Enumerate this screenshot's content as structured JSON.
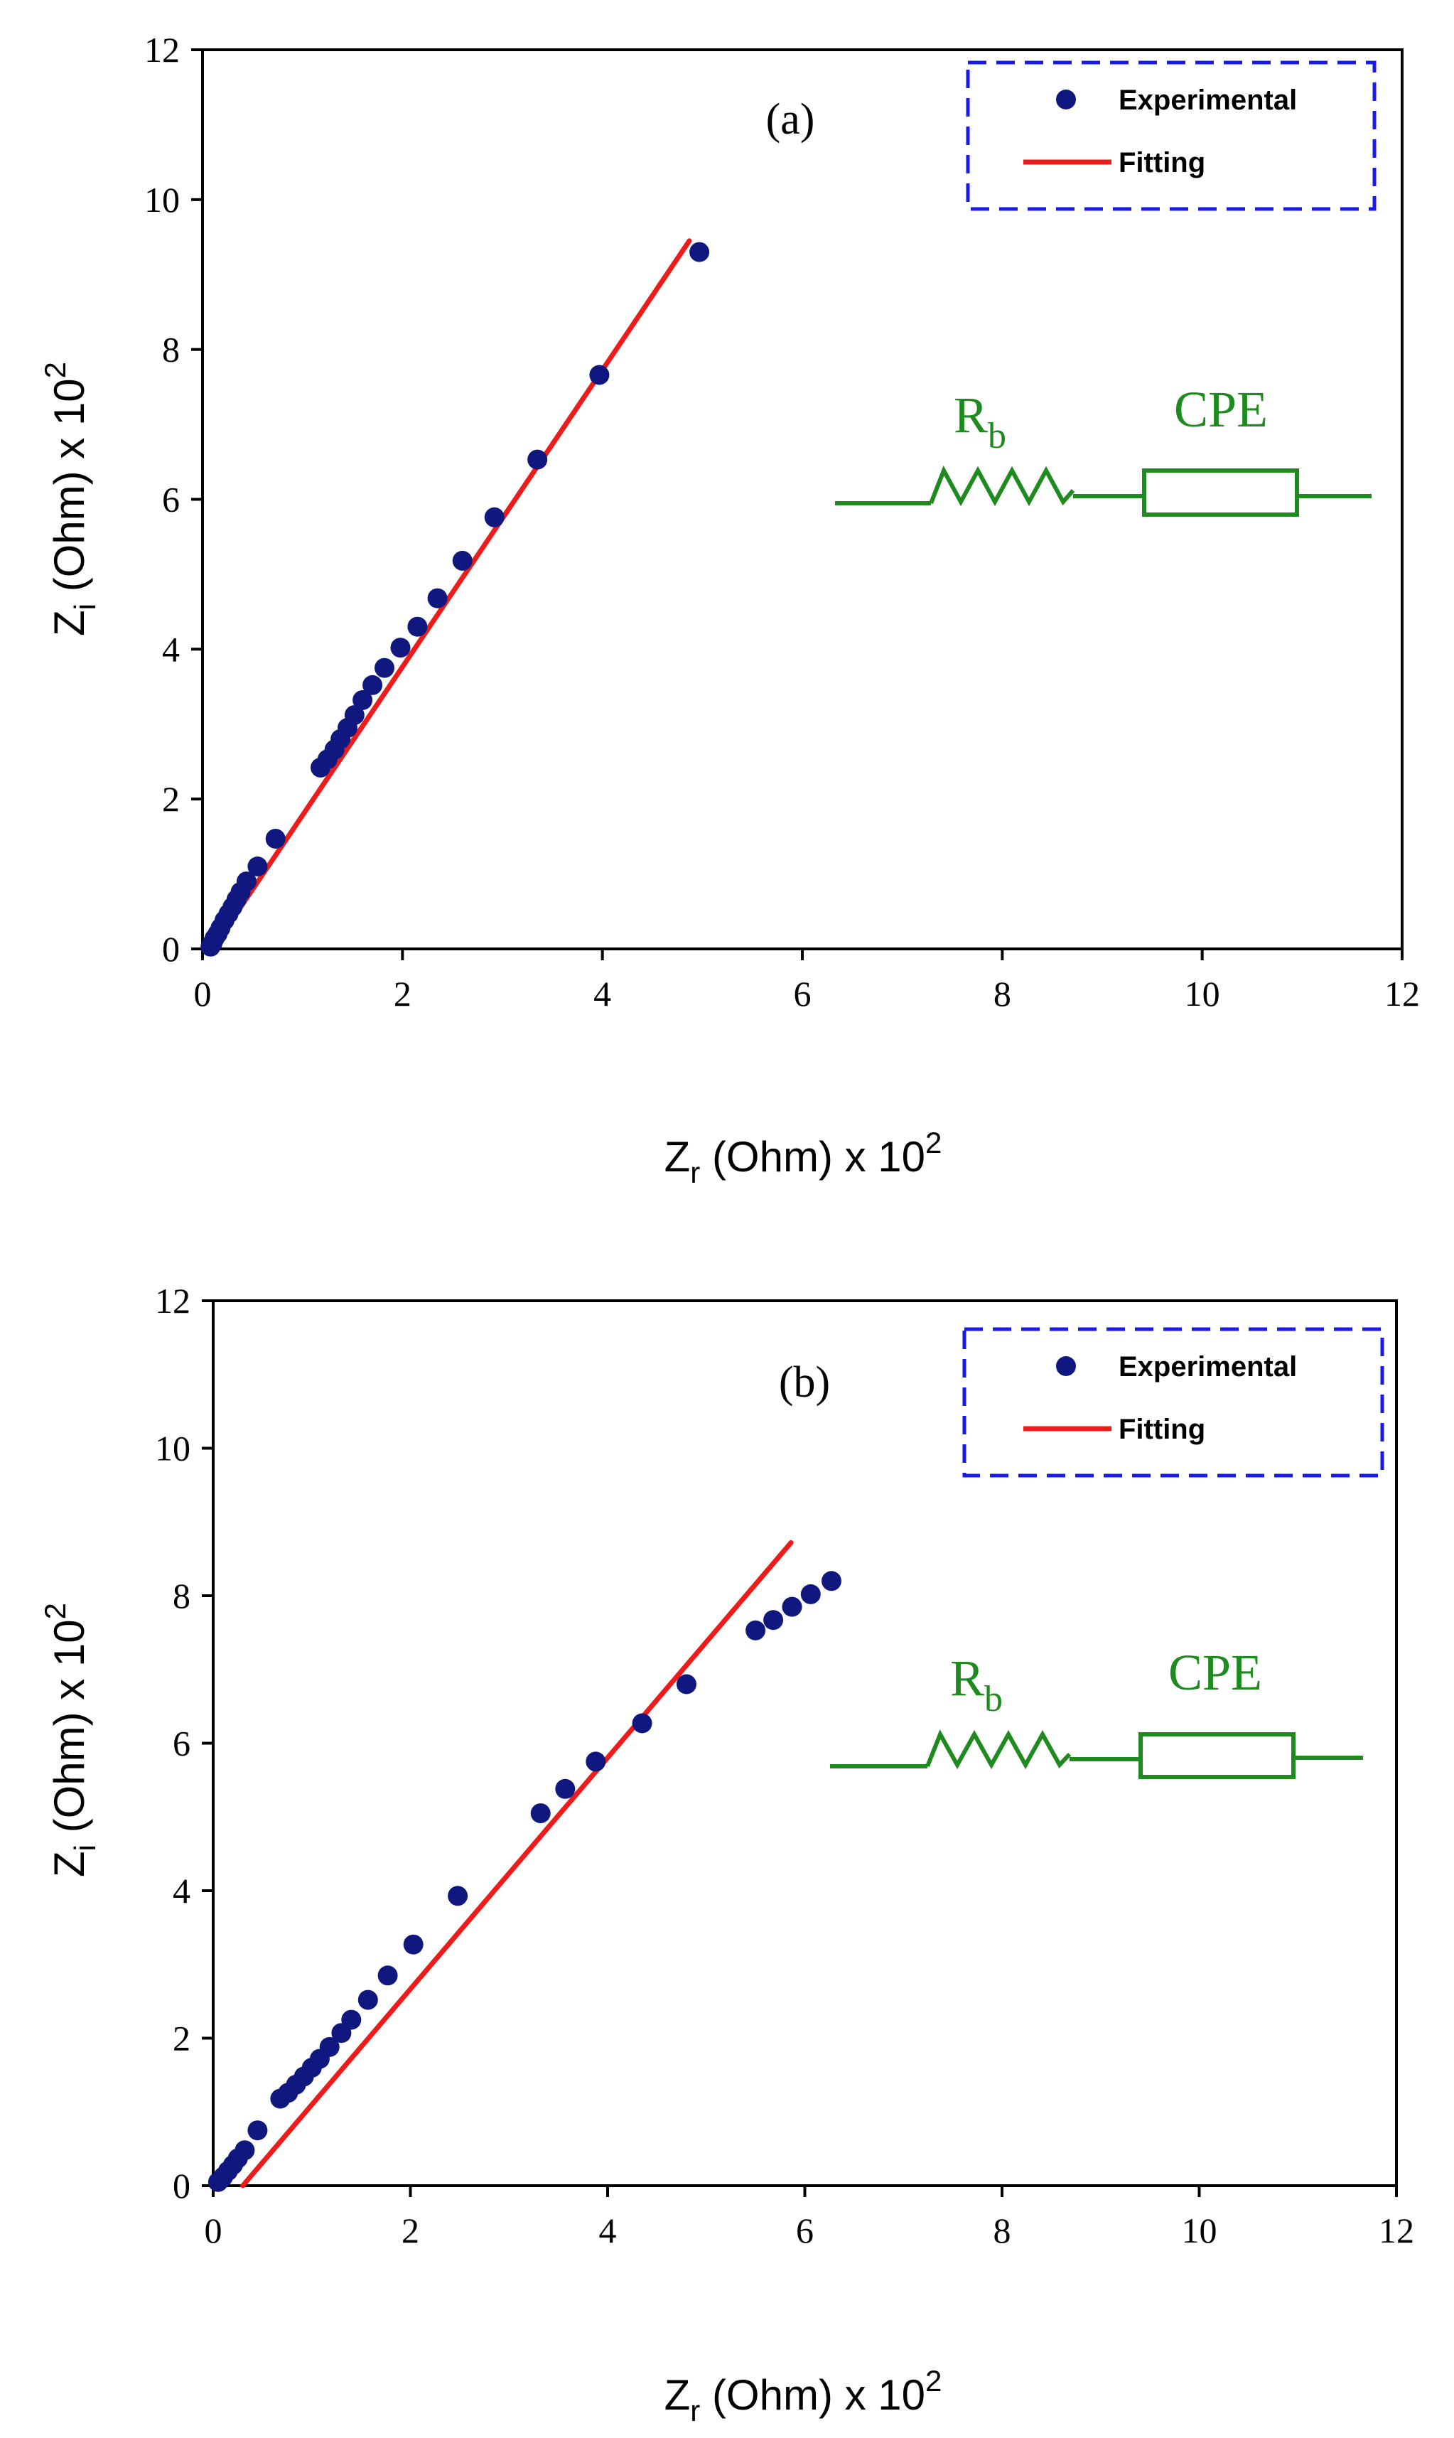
{
  "colors": {
    "experimental": "#101880",
    "fitting": "#ee1b1b",
    "legend_border": "#1a1ae6",
    "circuit": "#1f8a1f",
    "axis": "#000000"
  },
  "legend": {
    "experimental_label": "Experimental",
    "fitting_label": "Fitting"
  },
  "circuit": {
    "resistor_label": "R",
    "resistor_subscript": "b",
    "element_label": "CPE"
  },
  "axes": {
    "x_title_main": "Z",
    "x_title_sub": "r",
    "x_title_rest": " (Ohm) x 10",
    "x_title_sup": "2",
    "y_title_main": "Z",
    "y_title_sub": "i",
    "y_title_rest": " (Ohm) x 10",
    "y_title_sup": "2"
  },
  "chart_data": [
    {
      "type": "scatter",
      "panel": "(a)",
      "xlabel": "Zr (Ohm) x 10^2",
      "ylabel": "Zi (Ohm) x 10^2",
      "xlim": [
        0,
        12
      ],
      "ylim": [
        0,
        12
      ],
      "xticks": [
        0,
        2,
        4,
        6,
        8,
        10,
        12
      ],
      "yticks": [
        0,
        2,
        4,
        6,
        8,
        10,
        12
      ],
      "legend": "top-right",
      "series": [
        {
          "name": "Experimental",
          "kind": "points",
          "points": [
            [
              0.08,
              0.03
            ],
            [
              0.1,
              0.08
            ],
            [
              0.12,
              0.14
            ],
            [
              0.15,
              0.2
            ],
            [
              0.18,
              0.28
            ],
            [
              0.22,
              0.38
            ],
            [
              0.26,
              0.47
            ],
            [
              0.3,
              0.56
            ],
            [
              0.34,
              0.66
            ],
            [
              0.38,
              0.76
            ],
            [
              0.44,
              0.9
            ],
            [
              0.55,
              1.1
            ],
            [
              0.73,
              1.47
            ],
            [
              1.18,
              2.42
            ],
            [
              1.25,
              2.53
            ],
            [
              1.32,
              2.66
            ],
            [
              1.38,
              2.8
            ],
            [
              1.45,
              2.95
            ],
            [
              1.52,
              3.12
            ],
            [
              1.6,
              3.32
            ],
            [
              1.7,
              3.52
            ],
            [
              1.82,
              3.75
            ],
            [
              1.98,
              4.02
            ],
            [
              2.15,
              4.3
            ],
            [
              2.35,
              4.68
            ],
            [
              2.6,
              5.18
            ],
            [
              2.92,
              5.76
            ],
            [
              3.35,
              6.53
            ],
            [
              3.97,
              7.66
            ],
            [
              4.97,
              9.3
            ]
          ]
        },
        {
          "name": "Fitting",
          "kind": "line",
          "points": [
            [
              0.1,
              0.0
            ],
            [
              4.87,
              9.45
            ]
          ]
        }
      ]
    },
    {
      "type": "scatter",
      "panel": "(b)",
      "xlabel": "Zr (Ohm) x 10^2",
      "ylabel": "Zi (Ohm) x 10^2",
      "xlim": [
        0,
        12
      ],
      "ylim": [
        0,
        12
      ],
      "xticks": [
        0,
        2,
        4,
        6,
        8,
        10,
        12
      ],
      "yticks": [
        0,
        2,
        4,
        6,
        8,
        10,
        12
      ],
      "legend": "top-right",
      "series": [
        {
          "name": "Experimental",
          "kind": "points",
          "points": [
            [
              0.05,
              0.05
            ],
            [
              0.1,
              0.12
            ],
            [
              0.15,
              0.2
            ],
            [
              0.2,
              0.28
            ],
            [
              0.25,
              0.37
            ],
            [
              0.32,
              0.48
            ],
            [
              0.45,
              0.75
            ],
            [
              0.68,
              1.18
            ],
            [
              0.76,
              1.26
            ],
            [
              0.84,
              1.37
            ],
            [
              0.92,
              1.48
            ],
            [
              1.0,
              1.6
            ],
            [
              1.08,
              1.72
            ],
            [
              1.18,
              1.88
            ],
            [
              1.3,
              2.07
            ],
            [
              1.4,
              2.25
            ],
            [
              1.57,
              2.52
            ],
            [
              1.77,
              2.85
            ],
            [
              2.03,
              3.27
            ],
            [
              2.48,
              3.93
            ],
            [
              3.32,
              5.05
            ],
            [
              3.57,
              5.38
            ],
            [
              3.88,
              5.75
            ],
            [
              4.35,
              6.27
            ],
            [
              4.8,
              6.8
            ],
            [
              5.5,
              7.53
            ],
            [
              5.68,
              7.67
            ],
            [
              5.87,
              7.85
            ],
            [
              6.06,
              8.02
            ],
            [
              6.27,
              8.2
            ]
          ]
        },
        {
          "name": "Fitting",
          "kind": "line",
          "points": [
            [
              0.3,
              0.0
            ],
            [
              5.86,
              8.72
            ]
          ]
        }
      ]
    }
  ]
}
